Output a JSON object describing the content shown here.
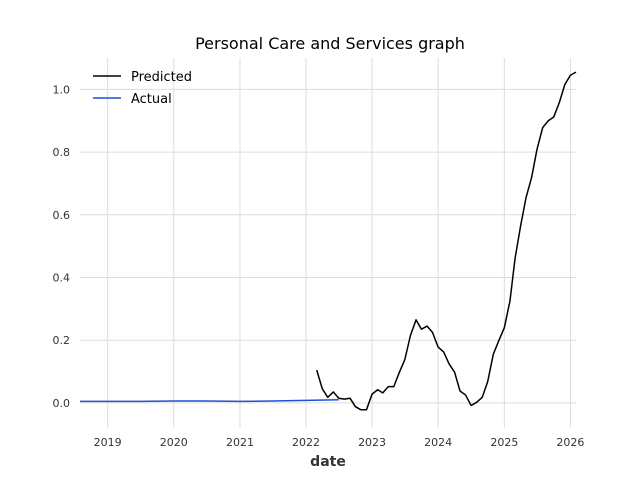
{
  "chart_data": {
    "type": "line",
    "title": "Personal Care and Services graph",
    "xlabel": "date",
    "ylabel": "",
    "x_type": "date",
    "xlim": [
      "2018-08-01",
      "2026-02-01"
    ],
    "ylim": [
      -0.08,
      1.1
    ],
    "x_ticks": [
      "2019",
      "2020",
      "2021",
      "2022",
      "2023",
      "2024",
      "2025",
      "2026"
    ],
    "y_ticks": [
      "0.0",
      "0.2",
      "0.4",
      "0.6",
      "0.8",
      "1.0"
    ],
    "y_tick_values": [
      0.0,
      0.2,
      0.4,
      0.6,
      0.8,
      1.0
    ],
    "grid": true,
    "legend_position": "top-left",
    "series": [
      {
        "name": "Predicted",
        "color": "#000000",
        "points": [
          [
            "2022-03-01",
            0.105
          ],
          [
            "2022-04-01",
            0.045
          ],
          [
            "2022-05-01",
            0.018
          ],
          [
            "2022-06-01",
            0.035
          ],
          [
            "2022-07-01",
            0.015
          ],
          [
            "2022-08-01",
            0.012
          ],
          [
            "2022-09-01",
            0.015
          ],
          [
            "2022-10-01",
            -0.012
          ],
          [
            "2022-11-01",
            -0.022
          ],
          [
            "2022-12-01",
            -0.022
          ],
          [
            "2023-01-01",
            0.028
          ],
          [
            "2023-02-01",
            0.042
          ],
          [
            "2023-03-01",
            0.032
          ],
          [
            "2023-04-01",
            0.052
          ],
          [
            "2023-05-01",
            0.052
          ],
          [
            "2023-06-01",
            0.098
          ],
          [
            "2023-07-01",
            0.138
          ],
          [
            "2023-08-01",
            0.215
          ],
          [
            "2023-09-01",
            0.265
          ],
          [
            "2023-10-01",
            0.235
          ],
          [
            "2023-11-01",
            0.245
          ],
          [
            "2023-12-01",
            0.225
          ],
          [
            "2024-01-01",
            0.178
          ],
          [
            "2024-02-01",
            0.162
          ],
          [
            "2024-03-01",
            0.125
          ],
          [
            "2024-04-01",
            0.098
          ],
          [
            "2024-05-01",
            0.038
          ],
          [
            "2024-06-01",
            0.025
          ],
          [
            "2024-07-01",
            -0.008
          ],
          [
            "2024-08-01",
            0.002
          ],
          [
            "2024-09-01",
            0.018
          ],
          [
            "2024-10-01",
            0.068
          ],
          [
            "2024-11-01",
            0.155
          ],
          [
            "2024-12-01",
            0.198
          ],
          [
            "2025-01-01",
            0.24
          ],
          [
            "2025-02-01",
            0.325
          ],
          [
            "2025-03-01",
            0.46
          ],
          [
            "2025-04-01",
            0.565
          ],
          [
            "2025-05-01",
            0.655
          ],
          [
            "2025-06-01",
            0.72
          ],
          [
            "2025-07-01",
            0.81
          ],
          [
            "2025-08-01",
            0.878
          ],
          [
            "2025-09-01",
            0.9
          ],
          [
            "2025-10-01",
            0.912
          ],
          [
            "2025-11-01",
            0.958
          ],
          [
            "2025-12-01",
            1.015
          ],
          [
            "2026-01-01",
            1.045
          ],
          [
            "2026-02-01",
            1.055
          ]
        ]
      },
      {
        "name": "Actual",
        "color": "#1f4fd8",
        "points": [
          [
            "2018-08-01",
            0.005
          ],
          [
            "2019-01-01",
            0.005
          ],
          [
            "2019-07-01",
            0.005
          ],
          [
            "2020-01-01",
            0.006
          ],
          [
            "2020-07-01",
            0.006
          ],
          [
            "2021-01-01",
            0.005
          ],
          [
            "2021-07-01",
            0.006
          ],
          [
            "2022-01-01",
            0.008
          ],
          [
            "2022-07-01",
            0.01
          ]
        ]
      }
    ]
  }
}
